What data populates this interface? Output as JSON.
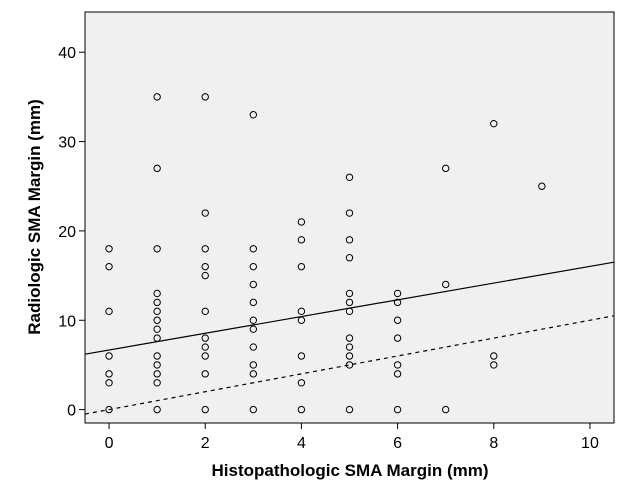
{
  "chart_data": {
    "type": "scatter",
    "xlabel": "Histopathologic SMA Margin (mm)",
    "ylabel": "Radiologic SMA Margin (mm)",
    "xlim": [
      -0.5,
      10.5
    ],
    "ylim": [
      -1.5,
      44.5
    ],
    "xticks": [
      0,
      2,
      4,
      6,
      8,
      10
    ],
    "yticks": [
      0,
      10,
      20,
      30,
      40
    ],
    "grid": false,
    "plot_background": "#f0f0f0",
    "marker": "open-circle",
    "series": [
      {
        "points": [
          [
            0,
            18
          ],
          [
            0,
            16
          ],
          [
            0,
            11
          ],
          [
            0,
            6
          ],
          [
            0,
            4
          ],
          [
            0,
            3
          ],
          [
            0,
            0
          ],
          [
            1,
            35
          ],
          [
            1,
            27
          ],
          [
            1,
            18
          ],
          [
            1,
            13
          ],
          [
            1,
            12
          ],
          [
            1,
            11
          ],
          [
            1,
            10
          ],
          [
            1,
            9
          ],
          [
            1,
            8
          ],
          [
            1,
            6
          ],
          [
            1,
            5
          ],
          [
            1,
            4
          ],
          [
            1,
            3
          ],
          [
            1,
            0
          ],
          [
            2,
            35
          ],
          [
            2,
            22
          ],
          [
            2,
            18
          ],
          [
            2,
            16
          ],
          [
            2,
            15
          ],
          [
            2,
            11
          ],
          [
            2,
            8
          ],
          [
            2,
            7
          ],
          [
            2,
            6
          ],
          [
            2,
            4
          ],
          [
            2,
            0
          ],
          [
            3,
            33
          ],
          [
            3,
            18
          ],
          [
            3,
            16
          ],
          [
            3,
            14
          ],
          [
            3,
            12
          ],
          [
            3,
            10
          ],
          [
            3,
            9
          ],
          [
            3,
            7
          ],
          [
            3,
            5
          ],
          [
            3,
            4
          ],
          [
            3,
            0
          ],
          [
            4,
            21
          ],
          [
            4,
            19
          ],
          [
            4,
            16
          ],
          [
            4,
            11
          ],
          [
            4,
            10
          ],
          [
            4,
            6
          ],
          [
            4,
            3
          ],
          [
            4,
            0
          ],
          [
            5,
            26
          ],
          [
            5,
            22
          ],
          [
            5,
            19
          ],
          [
            5,
            17
          ],
          [
            5,
            13
          ],
          [
            5,
            12
          ],
          [
            5,
            11
          ],
          [
            5,
            8
          ],
          [
            5,
            7
          ],
          [
            5,
            6
          ],
          [
            5,
            5
          ],
          [
            5,
            0
          ],
          [
            6,
            13
          ],
          [
            6,
            12
          ],
          [
            6,
            10
          ],
          [
            6,
            8
          ],
          [
            6,
            5
          ],
          [
            6,
            4
          ],
          [
            6,
            0
          ],
          [
            7,
            27
          ],
          [
            7,
            14
          ],
          [
            7,
            0
          ],
          [
            8,
            32
          ],
          [
            8,
            6
          ],
          [
            8,
            5
          ],
          [
            9,
            25
          ]
        ]
      }
    ],
    "lines": [
      {
        "style": "solid",
        "x": [
          -0.5,
          10.5
        ],
        "y": [
          6.2,
          16.5
        ]
      },
      {
        "style": "dashed",
        "x": [
          -0.5,
          10.5
        ],
        "y": [
          -0.5,
          10.5
        ]
      }
    ]
  }
}
